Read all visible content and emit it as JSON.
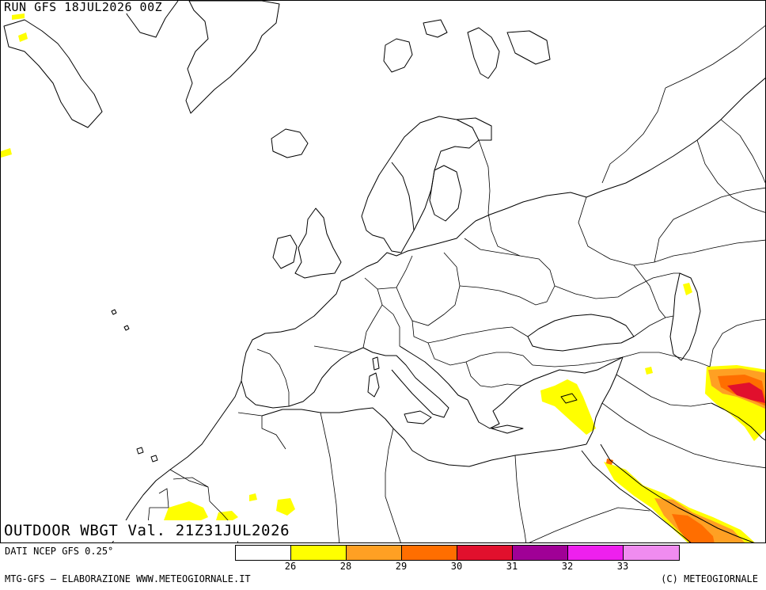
{
  "header": {
    "run_label": "RUN GFS 18JUL2026 00Z"
  },
  "map": {
    "variable_title": "OUTDOOR WBGT Val. 21Z31JUL2026",
    "region": "Europe / Mediterranean / Middle East",
    "line_color": "#000000",
    "land_color": "#ffffff"
  },
  "legend": {
    "source_note": "DATI NCEP GFS 0.25°",
    "bins": [
      {
        "color": "#ffffff",
        "upper": "26"
      },
      {
        "color": "#ffff00",
        "upper": "28"
      },
      {
        "color": "#ffa023",
        "upper": "29"
      },
      {
        "color": "#ff6e00",
        "upper": "30"
      },
      {
        "color": "#e1102d",
        "upper": "31"
      },
      {
        "color": "#a00096",
        "upper": "32"
      },
      {
        "color": "#ee20ee",
        "upper": "33"
      },
      {
        "color": "#f08cf0",
        "upper": ""
      }
    ]
  },
  "footer": {
    "left": "MTG-GFS — ELABORAZIONE WWW.METEOGIORNALE.IT",
    "right": "(C) METEOGIORNALE"
  }
}
